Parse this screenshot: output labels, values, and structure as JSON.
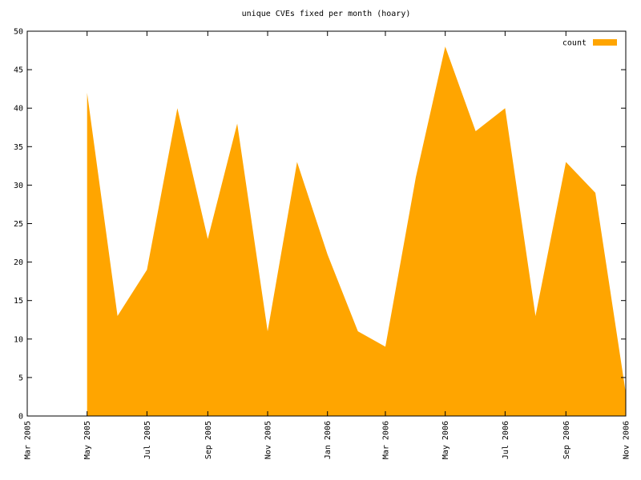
{
  "chart_data": {
    "type": "area",
    "title": "unique CVEs fixed per month (hoary)",
    "x": [
      "2005-05",
      "2005-06",
      "2005-07",
      "2005-08",
      "2005-09",
      "2005-10",
      "2005-11",
      "2005-12",
      "2006-01",
      "2006-02",
      "2006-03",
      "2006-04",
      "2006-05",
      "2006-06",
      "2006-07",
      "2006-08",
      "2006-09",
      "2006-10",
      "2006-11"
    ],
    "series": [
      {
        "name": "count",
        "color": "#ffa500",
        "values": [
          42,
          13,
          19,
          40,
          23,
          38,
          11,
          33,
          21,
          11,
          9,
          31,
          48,
          37,
          40,
          13,
          33,
          29,
          3
        ]
      }
    ],
    "xlim": [
      "2005-03",
      "2006-11"
    ],
    "xticks": [
      {
        "value": "2005-03",
        "label": "Mar 2005"
      },
      {
        "value": "2005-05",
        "label": "May 2005"
      },
      {
        "value": "2005-07",
        "label": "Jul 2005"
      },
      {
        "value": "2005-09",
        "label": "Sep 2005"
      },
      {
        "value": "2005-11",
        "label": "Nov 2005"
      },
      {
        "value": "2006-01",
        "label": "Jan 2006"
      },
      {
        "value": "2006-03",
        "label": "Mar 2006"
      },
      {
        "value": "2006-05",
        "label": "May 2006"
      },
      {
        "value": "2006-07",
        "label": "Jul 2006"
      },
      {
        "value": "2006-09",
        "label": "Sep 2006"
      },
      {
        "value": "2006-11",
        "label": "Nov 2006"
      }
    ],
    "ylim": [
      0,
      50
    ],
    "yticks": [
      0,
      5,
      10,
      15,
      20,
      25,
      30,
      35,
      40,
      45,
      50
    ],
    "legend": "top-right"
  }
}
